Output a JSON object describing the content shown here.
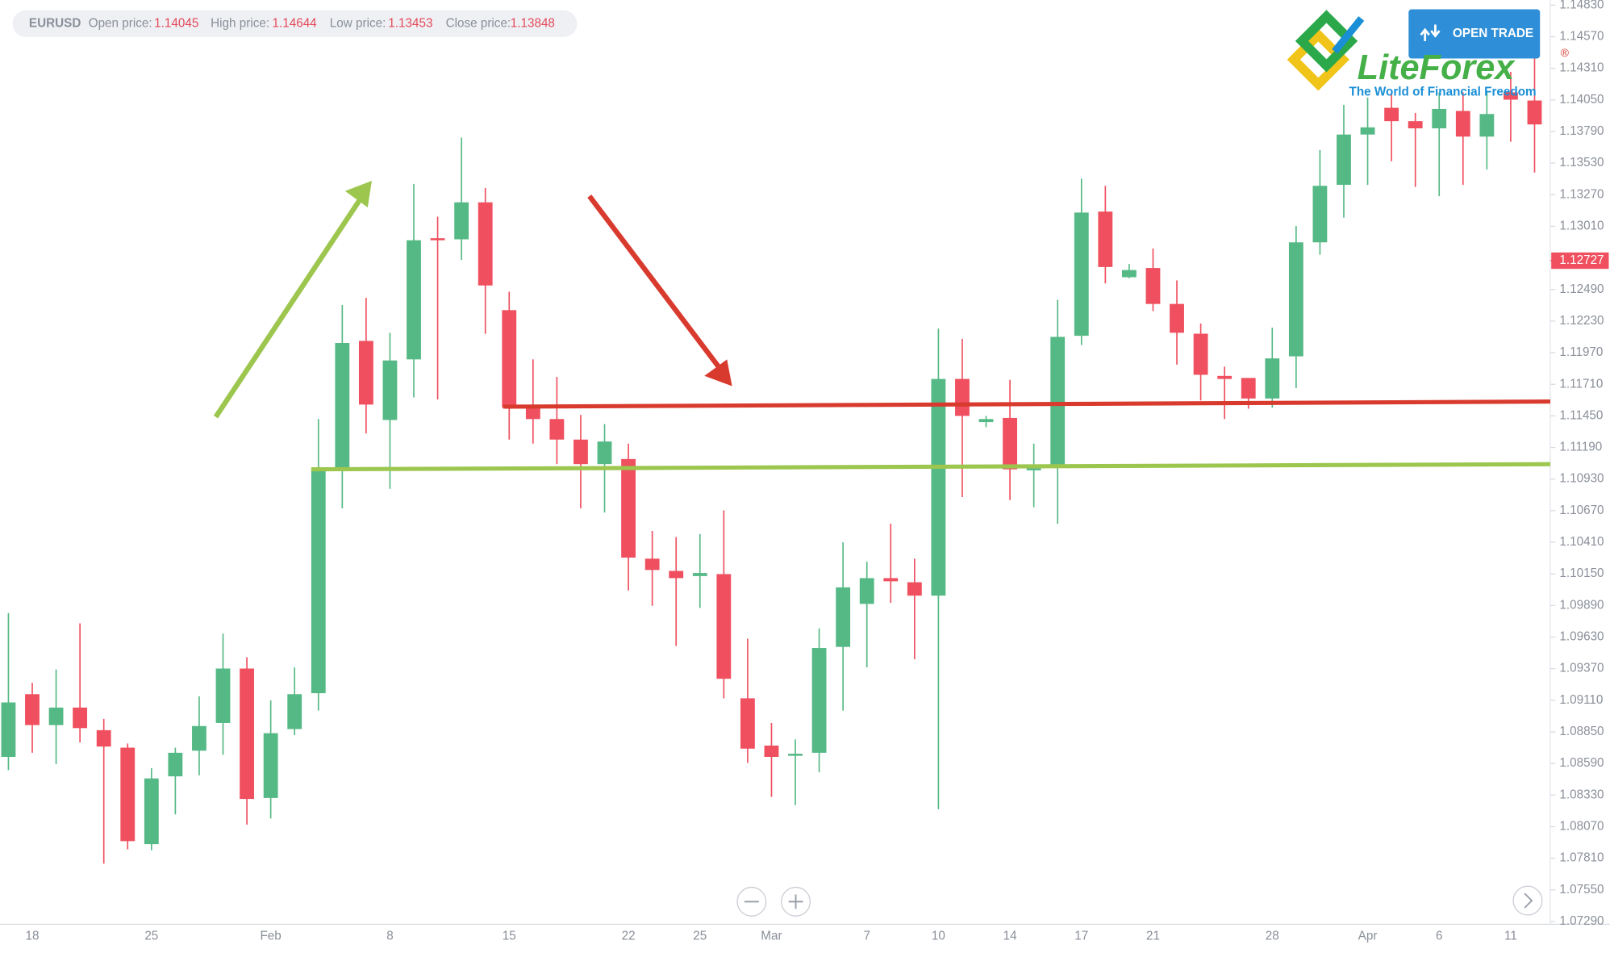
{
  "header": {
    "symbol": "EURUSD",
    "open_label": "Open price:",
    "high_label": "High price:",
    "low_label": "Low price:",
    "close_label": "Close price:"
  },
  "logo": {
    "name": "LiteForex",
    "registered": "®",
    "tagline": "The World of Financial Freedom"
  },
  "button": {
    "label": "OPEN TRADE"
  },
  "chart_data": {
    "type": "candlestick",
    "up_color": "#55b985",
    "down_color": "#ef4f5e",
    "categories": [
      null,
      "18",
      null,
      null,
      null,
      null,
      "25",
      null,
      null,
      null,
      null,
      "Feb",
      null,
      null,
      null,
      null,
      "8",
      null,
      null,
      null,
      null,
      "15",
      null,
      null,
      null,
      null,
      "22",
      null,
      null,
      "25",
      null,
      null,
      "Mar",
      null,
      null,
      null,
      "7",
      null,
      null,
      "10",
      null,
      null,
      "14",
      null,
      null,
      "17",
      null,
      null,
      "21",
      null,
      null,
      null,
      null,
      "28",
      null,
      null,
      null,
      "Apr",
      null,
      null,
      "6",
      null,
      null,
      "11",
      null
    ],
    "open": [
      1.08644,
      1.0916,
      1.08906,
      1.0905,
      1.08864,
      1.0872,
      1.07926,
      1.08484,
      1.08695,
      1.08923,
      1.09371,
      1.08306,
      1.08873,
      1.09168,
      1.11019,
      1.12067,
      1.11416,
      1.11915,
      1.12912,
      1.12903,
      1.13207,
      1.1232,
      1.11517,
      1.11424,
      1.11255,
      1.11053,
      1.11095,
      1.10275,
      1.10174,
      1.10132,
      1.10148,
      1.09126,
      1.08737,
      1.08653,
      1.08678,
      1.09549,
      1.09903,
      1.10115,
      1.10081,
      1.09971,
      1.11754,
      1.11399,
      1.11433,
      1.11002,
      1.11027,
      1.12109,
      1.13131,
      1.12591,
      1.12667,
      1.12371,
      1.12126,
      1.11779,
      1.11762,
      1.11593,
      1.1194,
      1.12878,
      1.13351,
      1.13765,
      1.13985,
      1.13875,
      1.13816,
      1.13959,
      1.13748,
      1.14112,
      1.14045
    ],
    "high": [
      1.09827,
      1.09253,
      1.09363,
      1.09743,
      1.08957,
      1.08754,
      1.08551,
      1.0872,
      1.09143,
      1.09658,
      1.09464,
      1.09109,
      1.0938,
      1.11424,
      1.12362,
      1.12422,
      1.12134,
      1.13359,
      1.13089,
      1.1374,
      1.13326,
      1.12472,
      1.11915,
      1.11771,
      1.11458,
      1.11382,
      1.11222,
      1.10503,
      1.10453,
      1.10478,
      1.10672,
      1.09616,
      1.08923,
      1.08788,
      1.09701,
      1.1041,
      1.1025,
      1.10563,
      1.10275,
      1.12168,
      1.12084,
      1.1145,
      1.11746,
      1.11222,
      1.12405,
      1.13402,
      1.13343,
      1.127,
      1.12827,
      1.12565,
      1.1221,
      1.11855,
      1.11762,
      1.12176,
      1.13013,
      1.13638,
      1.1401,
      1.14069,
      1.14112,
      1.13943,
      1.14112,
      1.14112,
      1.14112,
      1.14281,
      1.14644
    ],
    "low": [
      1.08535,
      1.08678,
      1.08585,
      1.08763,
      1.07766,
      1.07884,
      1.07875,
      1.08171,
      1.08492,
      1.08661,
      1.08087,
      1.08137,
      1.08822,
      1.09025,
      1.10689,
      1.11306,
      1.1085,
      1.11602,
      1.11585,
      1.12734,
      1.12126,
      1.11255,
      1.11222,
      1.11053,
      1.10689,
      1.10655,
      1.10013,
      1.09887,
      1.09557,
      1.0987,
      1.09126,
      1.08594,
      1.08315,
      1.08247,
      1.08518,
      1.09025,
      1.0938,
      1.09912,
      1.09447,
      1.08213,
      1.10782,
      1.11357,
      1.10757,
      1.10698,
      1.10563,
      1.12033,
      1.1254,
      1.12582,
      1.12312,
      1.11872,
      1.11577,
      1.11424,
      1.11509,
      1.11517,
      1.11678,
      1.12776,
      1.13081,
      1.13351,
      1.13545,
      1.13334,
      1.13258,
      1.13351,
      1.13478,
      1.13706,
      1.13453
    ],
    "close": [
      1.09092,
      1.08906,
      1.0905,
      1.08881,
      1.08729,
      1.07951,
      1.08467,
      1.08678,
      1.08898,
      1.09371,
      1.08298,
      1.08839,
      1.0916,
      1.1101,
      1.1205,
      1.11543,
      1.11906,
      1.12895,
      1.12895,
      1.13207,
      1.12523,
      1.11517,
      1.11424,
      1.11255,
      1.11053,
      1.11239,
      1.10284,
      1.10182,
      1.10115,
      1.10157,
      1.09287,
      1.08712,
      1.08644,
      1.0867,
      1.0954,
      1.10039,
      1.10115,
      1.10089,
      1.09971,
      1.11754,
      1.1145,
      1.11424,
      1.1101,
      1.11019,
      1.121,
      1.13123,
      1.12675,
      1.1265,
      1.12371,
      1.12134,
      1.11788,
      1.11754,
      1.11593,
      1.11923,
      1.12878,
      1.13343,
      1.13765,
      1.13824,
      1.13875,
      1.13816,
      1.13976,
      1.13748,
      1.13934,
      1.14052,
      1.13848
    ],
    "current_price": 1.12727,
    "current_price_color": "#ef4f5e",
    "ylim": [
      1.07267,
      1.14872
    ],
    "yticks": [
      {
        "value": 1.1483,
        "label": "1.14830"
      },
      {
        "value": 1.1457,
        "label": "1.14570"
      },
      {
        "value": 1.1431,
        "label": "1.14310"
      },
      {
        "value": 1.1405,
        "label": "1.14050"
      },
      {
        "value": 1.1379,
        "label": "1.13790"
      },
      {
        "value": 1.1353,
        "label": "1.13530"
      },
      {
        "value": 1.1327,
        "label": "1.13270"
      },
      {
        "value": 1.1301,
        "label": "1.13010"
      },
      {
        "value": 1.1249,
        "label": "1.12490"
      },
      {
        "value": 1.1223,
        "label": "1.12230"
      },
      {
        "value": 1.1197,
        "label": "1.11970"
      },
      {
        "value": 1.1171,
        "label": "1.11710"
      },
      {
        "value": 1.1145,
        "label": "1.11450"
      },
      {
        "value": 1.1119,
        "label": "1.11190"
      },
      {
        "value": 1.1093,
        "label": "1.10930"
      },
      {
        "value": 1.1067,
        "label": "1.10670"
      },
      {
        "value": 1.1041,
        "label": "1.10410"
      },
      {
        "value": 1.1015,
        "label": "1.10150"
      },
      {
        "value": 1.0989,
        "label": "1.09890"
      },
      {
        "value": 1.0963,
        "label": "1.09630"
      },
      {
        "value": 1.0937,
        "label": "1.09370"
      },
      {
        "value": 1.0911,
        "label": "1.09110"
      },
      {
        "value": 1.0885,
        "label": "1.08850"
      },
      {
        "value": 1.0859,
        "label": "1.08590"
      },
      {
        "value": 1.0833,
        "label": "1.08330"
      },
      {
        "value": 1.0807,
        "label": "1.08070"
      },
      {
        "value": 1.0781,
        "label": "1.07810"
      },
      {
        "value": 1.0755,
        "label": "1.07550"
      },
      {
        "value": 1.0729,
        "label": "1.07290"
      }
    ]
  }
}
